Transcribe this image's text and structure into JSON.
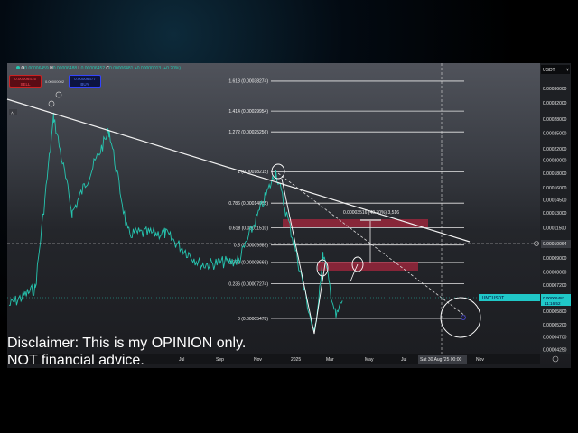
{
  "header": {
    "ohlc": {
      "o_label": "O",
      "o": "0.00006459",
      "h_label": "H",
      "h": "0.00006488",
      "l_label": "L",
      "l": "0.00006452",
      "c_label": "C",
      "c": "0.00006481",
      "change": "+0.00000013 (+0.20%)"
    },
    "sell": {
      "price": "0.00006475",
      "label": "SELL"
    },
    "spread": "0.00000002",
    "buy": {
      "price": "0.00006477",
      "label": "BUY"
    }
  },
  "currency_selector": "USDT",
  "disclaimer": [
    "Disclaimer: This is my OPINION only.",
    "NOT financial advice."
  ],
  "colors": {
    "up": "#26c6b0",
    "down": "#26c6b0",
    "fib": "#e8e8e8",
    "zone": "#b0263f",
    "ticker": "#20c8c8"
  },
  "chart_data": {
    "type": "line",
    "symbol": "LUNCUSDT",
    "last_price": "0.00006481",
    "countdown": "11:16:52",
    "crosshair_price": "0.00010064",
    "crosshair_time": "Sat 30 Aug '25  00:00",
    "y_scale": "log",
    "y_ticks": [
      "0.00036000",
      "0.00032000",
      "0.00028000",
      "0.00025000",
      "0.00022000",
      "0.00020000",
      "0.00018000",
      "0.00016000",
      "0.00014500",
      "0.00013000",
      "0.00011500",
      "0.00009000",
      "0.00008000",
      "0.00007200",
      "0.00005800",
      "0.00005200",
      "0.00004700",
      "0.00004250"
    ],
    "x_ticks": [
      "Jul",
      "Sep",
      "Nov",
      "2025",
      "Mar",
      "May",
      "Jul",
      "Nov"
    ],
    "fib_levels": [
      {
        "ratio": "1.618",
        "price": 0.00038274
      },
      {
        "ratio": "1.414",
        "price": 0.00029954
      },
      {
        "ratio": "1.272",
        "price": 0.00025256
      },
      {
        "ratio": "1",
        "price": 0.00018215
      },
      {
        "ratio": "0.786",
        "price": 0.00014085
      },
      {
        "ratio": "0.618",
        "price": 0.0001151
      },
      {
        "ratio": "0.5",
        "price": 9.989e-05
      },
      {
        "ratio": "0.382",
        "price": 8.668e-05
      },
      {
        "ratio": "0.236",
        "price": 7.274e-05
      },
      {
        "ratio": "0",
        "price": 5.478e-05
      }
    ],
    "measure_label": "0.00003516 (40.70%) 3,516",
    "price_path": [
      [
        "2023-09",
        6.1e-05
      ],
      [
        "2023-11",
        7e-05
      ],
      [
        "2023-12",
        0.000285
      ],
      [
        "2024-01",
        0.00013
      ],
      [
        "2024-03",
        0.000255
      ],
      [
        "2024-04",
        0.00011
      ],
      [
        "2024-06",
        0.00011
      ],
      [
        "2024-08",
        8.5e-05
      ],
      [
        "2024-10",
        8.8e-05
      ],
      [
        "2024-12",
        0.000182
      ],
      [
        "2025-01",
        0.0001
      ],
      [
        "2025-02",
        4.76e-05
      ],
      [
        "2025-02",
        9.3e-05
      ],
      [
        "2025-03",
        5.5e-05
      ],
      [
        "2025-03",
        6.48e-05
      ]
    ]
  }
}
